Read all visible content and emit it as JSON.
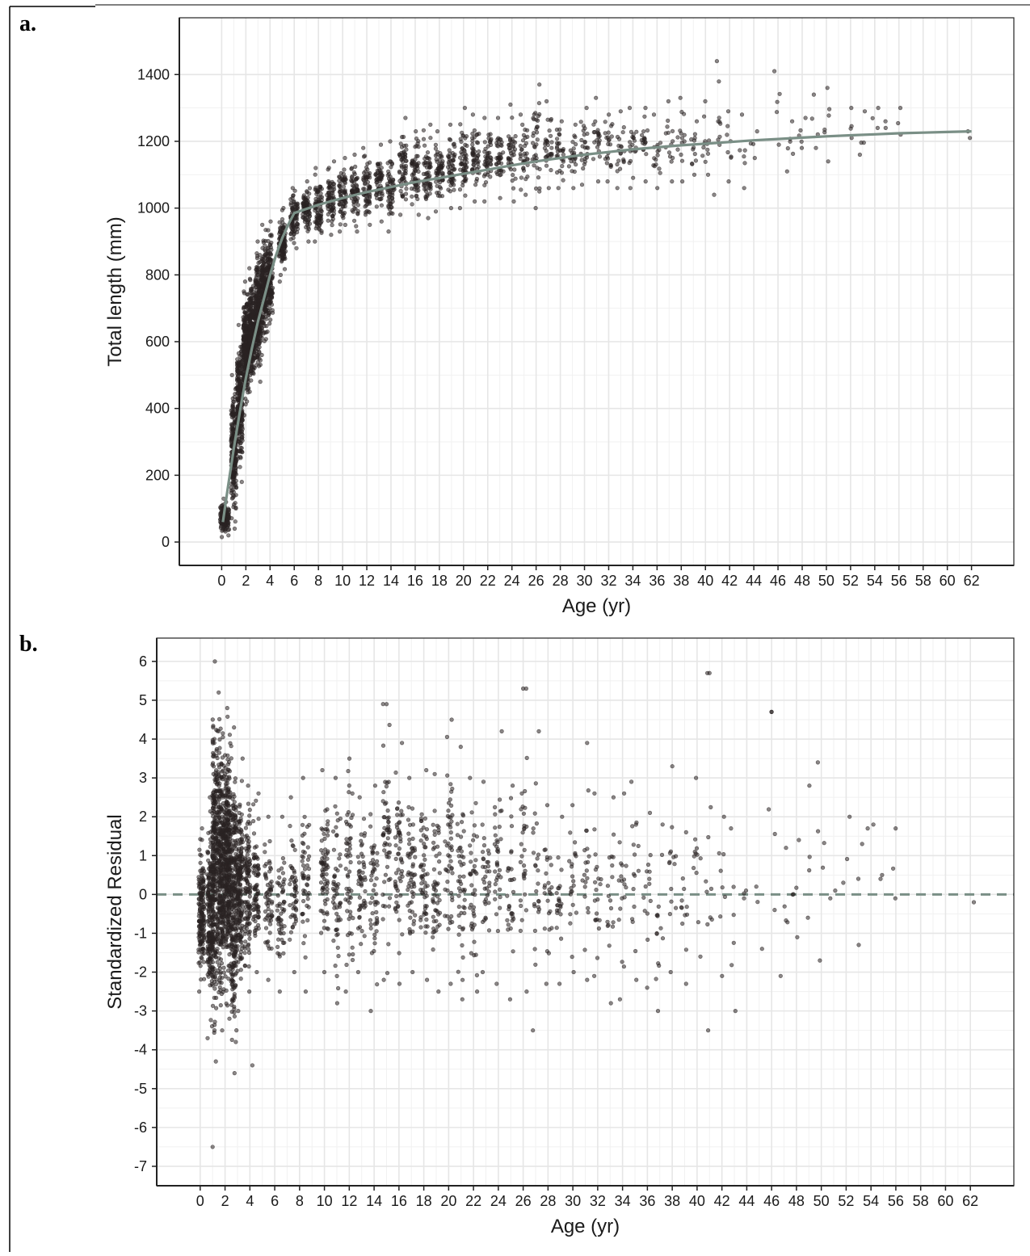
{
  "figure": {
    "panel_labels": [
      "a.",
      "b."
    ]
  },
  "colors": {
    "points": "#2a2323",
    "fit_line": "#7a8f86",
    "grid_major": "#e6e6e6",
    "grid_minor": "#f1f1f1",
    "frame": "#222222"
  },
  "chart_data": [
    {
      "type": "scatter",
      "panel": "a.",
      "xlabel": "Age (yr)",
      "ylabel": "Total length (mm)",
      "xlim": [
        -3.5,
        65.5
      ],
      "ylim": [
        -70,
        1570
      ],
      "x_ticks": [
        0,
        2,
        4,
        6,
        8,
        10,
        12,
        14,
        16,
        18,
        20,
        22,
        24,
        26,
        28,
        30,
        32,
        34,
        36,
        38,
        40,
        42,
        44,
        46,
        48,
        50,
        52,
        54,
        56,
        58,
        60,
        62
      ],
      "y_ticks": [
        0,
        200,
        400,
        600,
        800,
        1000,
        1200,
        1400
      ],
      "grid": true,
      "legend": "none",
      "fitted_curve": {
        "x": [
          0.1,
          0.5,
          1,
          1.5,
          2,
          2.5,
          3,
          3.5,
          4,
          4.5,
          5,
          5.5,
          6,
          8,
          10,
          12,
          14,
          16,
          18,
          20,
          22,
          24,
          26,
          28,
          30,
          32,
          34,
          36,
          38,
          40,
          42,
          44,
          46,
          48,
          50,
          52,
          54,
          56,
          58,
          60,
          62
        ],
        "y": [
          60,
          160,
          280,
          390,
          490,
          580,
          660,
          730,
          800,
          860,
          910,
          950,
          985,
          1010,
          1030,
          1048,
          1063,
          1078,
          1090,
          1103,
          1115,
          1128,
          1140,
          1150,
          1160,
          1168,
          1176,
          1182,
          1188,
          1193,
          1198,
          1203,
          1207,
          1211,
          1215,
          1218,
          1221,
          1224,
          1226,
          1228,
          1230
        ]
      },
      "point_clusters": [
        {
          "x": 0.1,
          "y_min": 15,
          "y_max": 130,
          "n": 90
        },
        {
          "x": 0.4,
          "y_min": 20,
          "y_max": 120,
          "n": 60
        },
        {
          "x": 1.0,
          "y_min": 40,
          "y_max": 500,
          "n": 220
        },
        {
          "x": 1.5,
          "y_min": 180,
          "y_max": 650,
          "n": 260
        },
        {
          "x": 2.0,
          "y_min": 380,
          "y_max": 780,
          "n": 300
        },
        {
          "x": 2.5,
          "y_min": 450,
          "y_max": 820,
          "n": 260
        },
        {
          "x": 3.0,
          "y_min": 480,
          "y_max": 900,
          "n": 260
        },
        {
          "x": 3.5,
          "y_min": 560,
          "y_max": 950,
          "n": 200
        },
        {
          "x": 4.0,
          "y_min": 630,
          "y_max": 960,
          "n": 160
        },
        {
          "x": 5.0,
          "y_min": 780,
          "y_max": 1000,
          "n": 110
        },
        {
          "x": 6.0,
          "y_min": 880,
          "y_max": 1060,
          "n": 90
        },
        {
          "x": 7.0,
          "y_min": 900,
          "y_max": 1080,
          "n": 80
        },
        {
          "x": 8.0,
          "y_min": 900,
          "y_max": 1120,
          "n": 80
        },
        {
          "x": 9.0,
          "y_min": 920,
          "y_max": 1140,
          "n": 70
        },
        {
          "x": 10.0,
          "y_min": 930,
          "y_max": 1150,
          "n": 70
        },
        {
          "x": 11.0,
          "y_min": 930,
          "y_max": 1160,
          "n": 65
        },
        {
          "x": 12.0,
          "y_min": 950,
          "y_max": 1180,
          "n": 65
        },
        {
          "x": 13.0,
          "y_min": 960,
          "y_max": 1190,
          "n": 60
        },
        {
          "x": 14.0,
          "y_min": 930,
          "y_max": 1200,
          "n": 60
        },
        {
          "x": 15.0,
          "y_min": 980,
          "y_max": 1270,
          "n": 60
        },
        {
          "x": 16.0,
          "y_min": 980,
          "y_max": 1230,
          "n": 60
        },
        {
          "x": 17.0,
          "y_min": 970,
          "y_max": 1250,
          "n": 60
        },
        {
          "x": 18.0,
          "y_min": 990,
          "y_max": 1230,
          "n": 60
        },
        {
          "x": 19.0,
          "y_min": 1000,
          "y_max": 1250,
          "n": 55
        },
        {
          "x": 20.0,
          "y_min": 1000,
          "y_max": 1300,
          "n": 55
        },
        {
          "x": 21.0,
          "y_min": 1020,
          "y_max": 1280,
          "n": 50
        },
        {
          "x": 22.0,
          "y_min": 1020,
          "y_max": 1270,
          "n": 45
        },
        {
          "x": 23.0,
          "y_min": 1030,
          "y_max": 1270,
          "n": 40
        },
        {
          "x": 24.0,
          "y_min": 1020,
          "y_max": 1310,
          "n": 40
        },
        {
          "x": 25.0,
          "y_min": 1040,
          "y_max": 1280,
          "n": 35
        },
        {
          "x": 26.0,
          "y_min": 1000,
          "y_max": 1370,
          "n": 35
        },
        {
          "x": 27.0,
          "y_min": 1060,
          "y_max": 1320,
          "n": 30
        },
        {
          "x": 28.0,
          "y_min": 1060,
          "y_max": 1260,
          "n": 30
        },
        {
          "x": 29.0,
          "y_min": 1060,
          "y_max": 1250,
          "n": 25
        },
        {
          "x": 30.0,
          "y_min": 1070,
          "y_max": 1300,
          "n": 25
        },
        {
          "x": 31.0,
          "y_min": 1080,
          "y_max": 1330,
          "n": 22
        },
        {
          "x": 32.0,
          "y_min": 1080,
          "y_max": 1280,
          "n": 22
        },
        {
          "x": 33.0,
          "y_min": 1060,
          "y_max": 1290,
          "n": 20
        },
        {
          "x": 34.0,
          "y_min": 1060,
          "y_max": 1300,
          "n": 20
        },
        {
          "x": 35.0,
          "y_min": 1080,
          "y_max": 1300,
          "n": 18
        },
        {
          "x": 36.0,
          "y_min": 1060,
          "y_max": 1280,
          "n": 16
        },
        {
          "x": 37.0,
          "y_min": 1080,
          "y_max": 1320,
          "n": 14
        },
        {
          "x": 38.0,
          "y_min": 1080,
          "y_max": 1330,
          "n": 14
        },
        {
          "x": 39.0,
          "y_min": 1100,
          "y_max": 1260,
          "n": 12
        },
        {
          "x": 40.0,
          "y_min": 1100,
          "y_max": 1320,
          "n": 12
        },
        {
          "x": 41.0,
          "y_min": 1040,
          "y_max": 1440,
          "n": 10
        },
        {
          "x": 42.0,
          "y_min": 1080,
          "y_max": 1290,
          "n": 8
        },
        {
          "x": 43.0,
          "y_min": 1060,
          "y_max": 1280,
          "n": 6
        },
        {
          "x": 44.0,
          "y_min": 1150,
          "y_max": 1230,
          "n": 4
        },
        {
          "x": 46.0,
          "y_min": 1190,
          "y_max": 1410,
          "n": 5
        },
        {
          "x": 47.0,
          "y_min": 1110,
          "y_max": 1260,
          "n": 6
        },
        {
          "x": 48.0,
          "y_min": 1180,
          "y_max": 1270,
          "n": 5
        },
        {
          "x": 49.0,
          "y_min": 1180,
          "y_max": 1340,
          "n": 4
        },
        {
          "x": 50.0,
          "y_min": 1140,
          "y_max": 1360,
          "n": 6
        },
        {
          "x": 52.0,
          "y_min": 1210,
          "y_max": 1300,
          "n": 4
        },
        {
          "x": 53.0,
          "y_min": 1160,
          "y_max": 1290,
          "n": 4
        },
        {
          "x": 54.0,
          "y_min": 1240,
          "y_max": 1300,
          "n": 3
        },
        {
          "x": 55.0,
          "y_min": 1240,
          "y_max": 1260,
          "n": 2
        },
        {
          "x": 56.0,
          "y_min": 1220,
          "y_max": 1300,
          "n": 3
        },
        {
          "x": 62.0,
          "y_min": 1210,
          "y_max": 1230,
          "n": 2
        }
      ]
    },
    {
      "type": "scatter",
      "panel": "b.",
      "xlabel": "Age (yr)",
      "ylabel": "Standardized Residual",
      "xlim": [
        -3.5,
        65.5
      ],
      "ylim": [
        -7.5,
        6.6
      ],
      "x_ticks": [
        0,
        2,
        4,
        6,
        8,
        10,
        12,
        14,
        16,
        18,
        20,
        22,
        24,
        26,
        28,
        30,
        32,
        34,
        36,
        38,
        40,
        42,
        44,
        46,
        48,
        50,
        52,
        54,
        56,
        58,
        60,
        62
      ],
      "y_ticks": [
        -7,
        -6,
        -5,
        -4,
        -3,
        -2,
        -1,
        0,
        1,
        2,
        3,
        4,
        5,
        6
      ],
      "grid": true,
      "legend": "none",
      "reference_line": {
        "y": 0,
        "style": "dashed"
      },
      "point_clusters": [
        {
          "x": 0.1,
          "y_min": -2.5,
          "y_max": 1.7,
          "n": 160
        },
        {
          "x": 0.8,
          "y_min": -3.7,
          "y_max": 2.5,
          "n": 200
        },
        {
          "x": 1.2,
          "y_min": -4.3,
          "y_max": 6.0,
          "n": 300
        },
        {
          "x": 1.7,
          "y_min": -3.5,
          "y_max": 5.2,
          "n": 320
        },
        {
          "x": 2.2,
          "y_min": -3.2,
          "y_max": 4.8,
          "n": 320
        },
        {
          "x": 2.7,
          "y_min": -4.6,
          "y_max": 4.3,
          "n": 260
        },
        {
          "x": 3.2,
          "y_min": -3.0,
          "y_max": 3.5,
          "n": 180
        },
        {
          "x": 3.8,
          "y_min": -2.5,
          "y_max": 2.8,
          "n": 120
        },
        {
          "x": 4.5,
          "y_min": -2.0,
          "y_max": 2.6,
          "n": 80
        },
        {
          "x": 5.5,
          "y_min": -2.2,
          "y_max": 2.0,
          "n": 60
        },
        {
          "x": 6.5,
          "y_min": -2.5,
          "y_max": 2.0,
          "n": 55
        },
        {
          "x": 7.5,
          "y_min": -2.0,
          "y_max": 2.5,
          "n": 50
        },
        {
          "x": 8.5,
          "y_min": -2.5,
          "y_max": 3.0,
          "n": 50
        },
        {
          "x": 10.0,
          "y_min": -2.0,
          "y_max": 3.2,
          "n": 70
        },
        {
          "x": 11.0,
          "y_min": -2.8,
          "y_max": 3.0,
          "n": 55
        },
        {
          "x": 12.0,
          "y_min": -2.5,
          "y_max": 3.5,
          "n": 55
        },
        {
          "x": 13.0,
          "y_min": -2.0,
          "y_max": 2.5,
          "n": 50
        },
        {
          "x": 14.0,
          "y_min": -3.0,
          "y_max": 2.8,
          "n": 50
        },
        {
          "x": 15.0,
          "y_min": -2.2,
          "y_max": 4.9,
          "n": 55
        },
        {
          "x": 16.0,
          "y_min": -2.3,
          "y_max": 3.9,
          "n": 55
        },
        {
          "x": 17.0,
          "y_min": -2.0,
          "y_max": 3.0,
          "n": 55
        },
        {
          "x": 18.0,
          "y_min": -2.2,
          "y_max": 3.2,
          "n": 55
        },
        {
          "x": 19.0,
          "y_min": -2.5,
          "y_max": 3.1,
          "n": 50
        },
        {
          "x": 20.0,
          "y_min": -2.3,
          "y_max": 4.5,
          "n": 50
        },
        {
          "x": 21.0,
          "y_min": -2.7,
          "y_max": 3.8,
          "n": 45
        },
        {
          "x": 22.0,
          "y_min": -2.5,
          "y_max": 3.0,
          "n": 40
        },
        {
          "x": 23.0,
          "y_min": -2.0,
          "y_max": 2.9,
          "n": 35
        },
        {
          "x": 24.0,
          "y_min": -2.3,
          "y_max": 4.2,
          "n": 35
        },
        {
          "x": 25.0,
          "y_min": -2.7,
          "y_max": 2.8,
          "n": 30
        },
        {
          "x": 26.0,
          "y_min": -2.5,
          "y_max": 5.3,
          "n": 30
        },
        {
          "x": 27.0,
          "y_min": -3.5,
          "y_max": 4.2,
          "n": 25
        },
        {
          "x": 28.0,
          "y_min": -2.3,
          "y_max": 2.3,
          "n": 25
        },
        {
          "x": 29.0,
          "y_min": -2.3,
          "y_max": 2.0,
          "n": 22
        },
        {
          "x": 30.0,
          "y_min": -2.0,
          "y_max": 2.3,
          "n": 22
        },
        {
          "x": 31.0,
          "y_min": -2.2,
          "y_max": 3.9,
          "n": 20
        },
        {
          "x": 32.0,
          "y_min": -2.1,
          "y_max": 2.6,
          "n": 20
        },
        {
          "x": 33.0,
          "y_min": -2.8,
          "y_max": 2.5,
          "n": 18
        },
        {
          "x": 34.0,
          "y_min": -2.7,
          "y_max": 2.6,
          "n": 18
        },
        {
          "x": 35.0,
          "y_min": -2.2,
          "y_max": 2.9,
          "n": 16
        },
        {
          "x": 36.0,
          "y_min": -2.4,
          "y_max": 2.1,
          "n": 14
        },
        {
          "x": 37.0,
          "y_min": -3.0,
          "y_max": 1.8,
          "n": 14
        },
        {
          "x": 38.0,
          "y_min": -2.0,
          "y_max": 3.3,
          "n": 14
        },
        {
          "x": 39.0,
          "y_min": -2.3,
          "y_max": 1.6,
          "n": 12
        },
        {
          "x": 40.0,
          "y_min": -1.6,
          "y_max": 3.0,
          "n": 12
        },
        {
          "x": 41.0,
          "y_min": -3.5,
          "y_max": 5.7,
          "n": 10
        },
        {
          "x": 42.0,
          "y_min": -2.1,
          "y_max": 2.0,
          "n": 8
        },
        {
          "x": 43.0,
          "y_min": -3.0,
          "y_max": 1.7,
          "n": 6
        },
        {
          "x": 44.0,
          "y_min": -0.1,
          "y_max": 0.1,
          "n": 3
        },
        {
          "x": 45.0,
          "y_min": -1.4,
          "y_max": 0.2,
          "n": 3
        },
        {
          "x": 46.0,
          "y_min": -0.4,
          "y_max": 4.7,
          "n": 4
        },
        {
          "x": 47.0,
          "y_min": -2.1,
          "y_max": 1.2,
          "n": 5
        },
        {
          "x": 48.0,
          "y_min": -1.1,
          "y_max": 1.4,
          "n": 5
        },
        {
          "x": 49.0,
          "y_min": -0.6,
          "y_max": 2.8,
          "n": 4
        },
        {
          "x": 50.0,
          "y_min": -1.7,
          "y_max": 3.4,
          "n": 5
        },
        {
          "x": 51.0,
          "y_min": -0.1,
          "y_max": 0.1,
          "n": 2
        },
        {
          "x": 52.0,
          "y_min": 0.3,
          "y_max": 2.0,
          "n": 3
        },
        {
          "x": 53.0,
          "y_min": -1.3,
          "y_max": 1.3,
          "n": 3
        },
        {
          "x": 54.0,
          "y_min": 1.7,
          "y_max": 1.8,
          "n": 2
        },
        {
          "x": 55.0,
          "y_min": 0.4,
          "y_max": 0.5,
          "n": 2
        },
        {
          "x": 56.0,
          "y_min": -0.1,
          "y_max": 1.7,
          "n": 3
        },
        {
          "x": 62.0,
          "y_min": -0.3,
          "y_max": -0.2,
          "n": 1
        }
      ],
      "outliers": [
        {
          "x": 1.0,
          "y": -6.5
        },
        {
          "x": 4.2,
          "y": -4.4
        },
        {
          "x": 41.0,
          "y": 5.7
        },
        {
          "x": 46.0,
          "y": 4.7
        },
        {
          "x": 26.0,
          "y": 5.3
        },
        {
          "x": 15.0,
          "y": 4.9
        }
      ]
    }
  ]
}
